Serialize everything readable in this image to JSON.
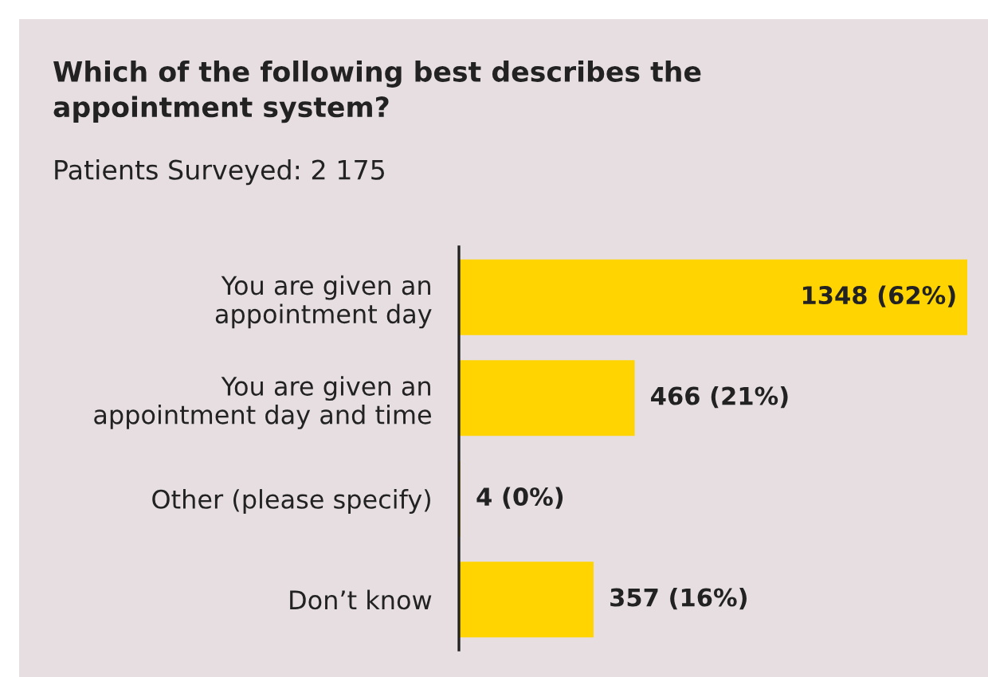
{
  "chart_data": {
    "type": "bar",
    "orientation": "horizontal",
    "title": "Which of the following best describes the\nappointment system?",
    "subtitle": "Patients Surveyed: 2 175",
    "categories": [
      "You are given an\nappointment day",
      "You are given an\nappointment day and time",
      "Other (please specify)",
      "Don’t know"
    ],
    "values": [
      1348,
      466,
      4,
      357
    ],
    "value_labels": [
      "1348 (62%)",
      "466 (21%)",
      "4 (0%)",
      "357 (16%)"
    ],
    "color": "#ffd400",
    "grid": false,
    "legend": false
  }
}
